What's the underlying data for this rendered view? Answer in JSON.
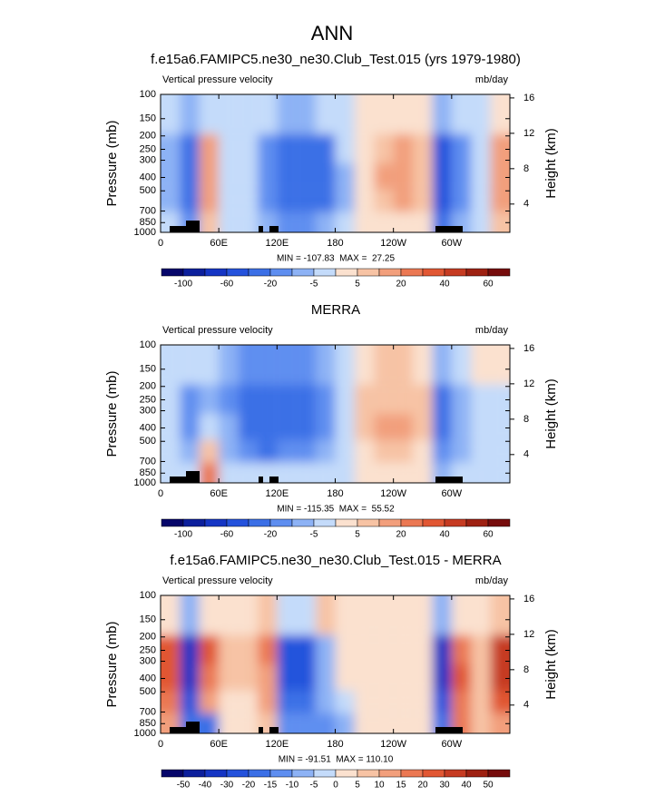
{
  "title": "ANN",
  "chart_data": [
    {
      "type": "contour",
      "title": "f.e15a6.FAMIPC5.ne30_ne30.Club_Test.015 (yrs 1979-1980)",
      "left_text": "Vertical pressure velocity",
      "right_text": "mb/day",
      "ylabel": "Pressure (mb)",
      "y2label": "Height (km)",
      "stats": "MIN = -107.83  MAX =  27.25",
      "xlim": [
        0,
        360
      ],
      "xticks": [
        0,
        {
          "value": 60,
          "label": "60E"
        },
        {
          "value": 120,
          "label": "120E"
        },
        180,
        {
          "value": 240,
          "label": "120W"
        },
        {
          "value": 300,
          "label": "60W"
        }
      ],
      "ylim": [
        1000,
        100
      ],
      "log_y": true,
      "yticks": [
        100,
        150,
        200,
        250,
        300,
        400,
        500,
        700,
        850,
        1000
      ],
      "y2lim": [
        0.8,
        16.4
      ],
      "y2ticks": [
        4,
        8,
        12,
        16
      ],
      "levels": [
        -100,
        -80,
        -60,
        -40,
        -20,
        -10,
        -5,
        0,
        5,
        10,
        20,
        30,
        40,
        50,
        60
      ],
      "cbar_ticks": [
        -100,
        -60,
        -20,
        -5,
        5,
        20,
        40,
        60
      ],
      "colors": [
        "#06066a",
        "#0c1f9c",
        "#1535c4",
        "#2452dc",
        "#3b6fe6",
        "#5e8ef0",
        "#8db2f5",
        "#c4dbfa",
        "#fbe1cf",
        "#f7c3a4",
        "#f29f7c",
        "#eb7853",
        "#e15733",
        "#c63b22",
        "#9e2112",
        "#760c0c"
      ],
      "field": {
        "lon": [
          10,
          30,
          50,
          70,
          90,
          110,
          130,
          150,
          170,
          190,
          210,
          230,
          250,
          270,
          290,
          310,
          330,
          350
        ],
        "plev": [
          150,
          250,
          400,
          600,
          850
        ],
        "values": [
          [
            -5,
            -10,
            -5,
            -5,
            -3,
            -5,
            -10,
            -10,
            -5,
            -3,
            2,
            3,
            3,
            3,
            -10,
            -5,
            -3,
            2
          ],
          [
            -10,
            -40,
            10,
            -5,
            -5,
            -20,
            -40,
            -40,
            -30,
            -5,
            3,
            8,
            10,
            5,
            -60,
            -20,
            -5,
            10
          ],
          [
            -10,
            -40,
            15,
            -5,
            -5,
            -20,
            -40,
            -40,
            -40,
            -10,
            3,
            10,
            15,
            5,
            -60,
            -20,
            -5,
            15
          ],
          [
            -10,
            -30,
            10,
            -5,
            -5,
            -20,
            -40,
            -40,
            -30,
            -10,
            3,
            8,
            10,
            5,
            -60,
            -20,
            -5,
            10
          ],
          [
            -5,
            -20,
            5,
            -3,
            -3,
            -10,
            -20,
            -20,
            -10,
            -5,
            2,
            3,
            3,
            2,
            -40,
            -10,
            -3,
            5
          ]
        ]
      }
    },
    {
      "type": "contour",
      "title": "MERRA",
      "left_text": "Vertical pressure velocity",
      "right_text": "mb/day",
      "ylabel": "Pressure (mb)",
      "y2label": "Height (km)",
      "stats": "MIN = -115.35  MAX =  55.52",
      "xlim": [
        0,
        360
      ],
      "xticks": [
        0,
        {
          "value": 60,
          "label": "60E"
        },
        {
          "value": 120,
          "label": "120E"
        },
        180,
        {
          "value": 240,
          "label": "120W"
        },
        {
          "value": 300,
          "label": "60W"
        }
      ],
      "ylim": [
        1000,
        100
      ],
      "log_y": true,
      "yticks": [
        100,
        150,
        200,
        250,
        300,
        400,
        500,
        700,
        850,
        1000
      ],
      "y2lim": [
        0.8,
        16.4
      ],
      "y2ticks": [
        4,
        8,
        12,
        16
      ],
      "levels": [
        -100,
        -80,
        -60,
        -40,
        -20,
        -10,
        -5,
        0,
        5,
        10,
        20,
        30,
        40,
        50,
        60
      ],
      "cbar_ticks": [
        -100,
        -60,
        -20,
        -5,
        5,
        20,
        40,
        60
      ],
      "colors": [
        "#06066a",
        "#0c1f9c",
        "#1535c4",
        "#2452dc",
        "#3b6fe6",
        "#5e8ef0",
        "#8db2f5",
        "#c4dbfa",
        "#fbe1cf",
        "#f7c3a4",
        "#f29f7c",
        "#eb7853",
        "#e15733",
        "#c63b22",
        "#9e2112",
        "#760c0c"
      ],
      "field": {
        "lon": [
          10,
          30,
          50,
          70,
          90,
          110,
          130,
          150,
          170,
          190,
          210,
          230,
          250,
          270,
          290,
          310,
          330,
          350
        ],
        "plev": [
          150,
          250,
          400,
          600,
          850
        ],
        "values": [
          [
            -5,
            -5,
            -3,
            -10,
            -20,
            -20,
            -20,
            -20,
            -10,
            -5,
            3,
            5,
            5,
            3,
            -10,
            -5,
            3,
            3
          ],
          [
            -5,
            -20,
            -10,
            -20,
            -30,
            -30,
            -30,
            -30,
            -20,
            -5,
            5,
            8,
            8,
            5,
            -30,
            -10,
            -5,
            -3
          ],
          [
            -5,
            -20,
            -5,
            -10,
            -30,
            -30,
            -30,
            -30,
            -20,
            -5,
            5,
            10,
            10,
            5,
            -30,
            -10,
            -5,
            -5
          ],
          [
            -5,
            -10,
            5,
            -10,
            -20,
            -30,
            -20,
            -20,
            -10,
            -5,
            3,
            8,
            8,
            3,
            -20,
            -10,
            -5,
            -5
          ],
          [
            -3,
            -5,
            20,
            -5,
            -5,
            -5,
            -5,
            -5,
            -5,
            -3,
            2,
            3,
            3,
            2,
            -10,
            -5,
            -3,
            -3
          ]
        ]
      }
    },
    {
      "type": "contour",
      "title": "f.e15a6.FAMIPC5.ne30_ne30.Club_Test.015 - MERRA",
      "left_text": "Vertical pressure velocity",
      "right_text": "mb/day",
      "ylabel": "Pressure (mb)",
      "y2label": "Height (km)",
      "stats": "MIN = -91.51  MAX = 110.10",
      "xlim": [
        0,
        360
      ],
      "xticks": [
        0,
        {
          "value": 60,
          "label": "60E"
        },
        {
          "value": 120,
          "label": "120E"
        },
        180,
        {
          "value": 240,
          "label": "120W"
        },
        {
          "value": 300,
          "label": "60W"
        }
      ],
      "ylim": [
        1000,
        100
      ],
      "log_y": true,
      "yticks": [
        100,
        150,
        200,
        250,
        300,
        400,
        500,
        700,
        850,
        1000
      ],
      "y2lim": [
        0.8,
        16.4
      ],
      "y2ticks": [
        4,
        8,
        12,
        16
      ],
      "levels": [
        -50,
        -40,
        -30,
        -20,
        -15,
        -10,
        -5,
        0,
        5,
        10,
        15,
        20,
        30,
        40,
        50
      ],
      "cbar_ticks": [
        -50,
        -40,
        -30,
        -20,
        -15,
        -10,
        -5,
        0,
        5,
        10,
        15,
        20,
        30,
        40,
        50
      ],
      "colors": [
        "#06066a",
        "#0c1f9c",
        "#1535c4",
        "#2452dc",
        "#3b6fe6",
        "#5e8ef0",
        "#8db2f5",
        "#c4dbfa",
        "#fbe1cf",
        "#f7c3a4",
        "#f29f7c",
        "#eb7853",
        "#e15733",
        "#c63b22",
        "#9e2112",
        "#760c0c"
      ],
      "field": {
        "lon": [
          10,
          30,
          50,
          70,
          90,
          110,
          130,
          150,
          170,
          190,
          210,
          230,
          250,
          270,
          290,
          310,
          330,
          350
        ],
        "plev": [
          150,
          250,
          400,
          600,
          850
        ],
        "values": [
          [
            3,
            -10,
            3,
            2,
            2,
            5,
            -5,
            -5,
            5,
            2,
            2,
            2,
            2,
            2,
            -10,
            3,
            3,
            5
          ],
          [
            20,
            -40,
            20,
            5,
            5,
            15,
            -30,
            -30,
            -10,
            3,
            2,
            3,
            2,
            2,
            -40,
            15,
            5,
            30
          ],
          [
            20,
            -40,
            15,
            5,
            5,
            10,
            -30,
            -30,
            -10,
            3,
            2,
            2,
            2,
            2,
            -40,
            20,
            5,
            30
          ],
          [
            15,
            -30,
            10,
            3,
            3,
            10,
            -20,
            -20,
            -10,
            -5,
            2,
            2,
            2,
            2,
            -30,
            15,
            5,
            25
          ],
          [
            10,
            -20,
            -20,
            3,
            3,
            5,
            -15,
            -15,
            -15,
            -10,
            2,
            2,
            3,
            3,
            -20,
            15,
            5,
            10
          ]
        ]
      }
    }
  ]
}
